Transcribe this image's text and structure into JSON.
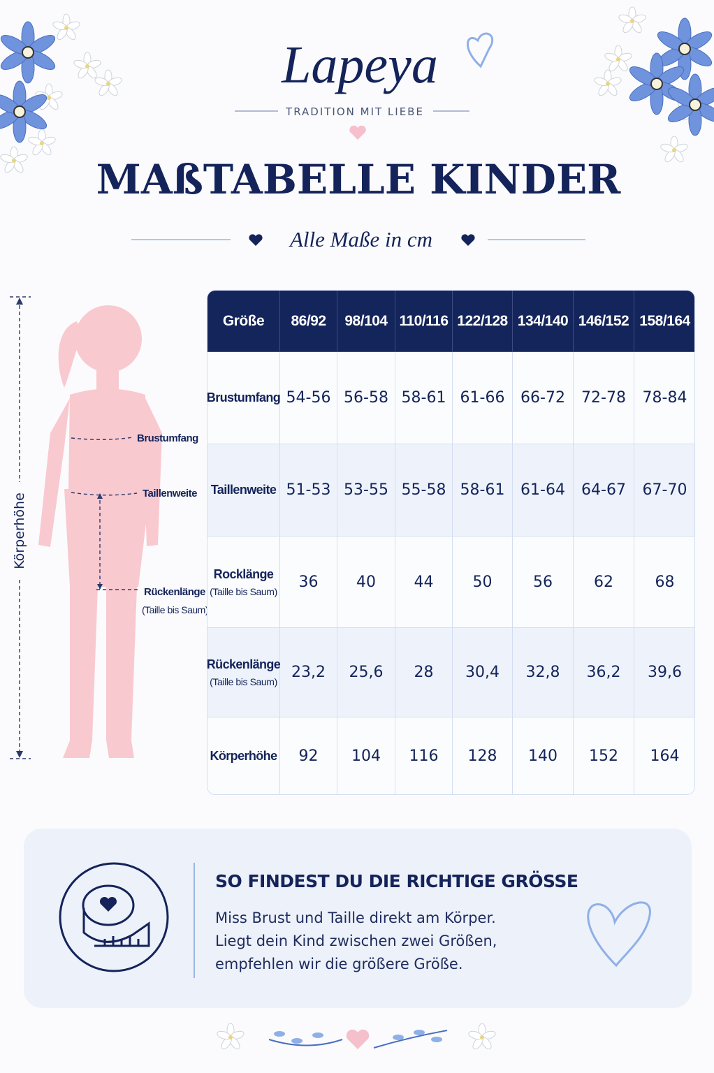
{
  "brand": {
    "name": "Lapeya",
    "tagline": "TRADITION MIT LIEBE"
  },
  "title": "MAßTABELLE KINDER",
  "subtitle": "Alle Maße in cm",
  "figure": {
    "chest": "Brustumfang",
    "waist": "Taillenweite",
    "back": "Rückenlänge",
    "back_note": "(Taille bis Saum)",
    "height": "Körperhöhe"
  },
  "table": {
    "header": [
      "Größe",
      "86/92",
      "98/104",
      "110/116",
      "122/128",
      "134/140",
      "146/152",
      "158/164"
    ],
    "rows": [
      {
        "label": "Brustumfang",
        "cells": [
          "54-56",
          "56-58",
          "58-61",
          "61-66",
          "66-72",
          "72-78",
          "78-84"
        ]
      },
      {
        "label": "Taillenweite",
        "cells": [
          "51-53",
          "53-55",
          "55-58",
          "58-61",
          "61-64",
          "64-67",
          "67-70"
        ]
      },
      {
        "label": "Rocklänge",
        "note": "(Taille bis Saum)",
        "cells": [
          "36",
          "40",
          "44",
          "50",
          "56",
          "62",
          "68"
        ]
      },
      {
        "label": "Rückenlänge",
        "note": "(Taille bis Saum)",
        "cells": [
          "23,2",
          "25,6",
          "28",
          "30,4",
          "32,8",
          "36,2",
          "39,6"
        ]
      },
      {
        "label": "Körperhöhe",
        "cells": [
          "92",
          "104",
          "116",
          "128",
          "140",
          "152",
          "164"
        ]
      }
    ]
  },
  "info": {
    "title": "SO FINDEST DU DIE RICHTIGE GRÖSSE",
    "lines": [
      "Miss Brust und Taille direkt am Körper.",
      "Liegt dein Kind zwischen zwei Größen,",
      "empfehlen wir die größere Größe."
    ]
  }
}
